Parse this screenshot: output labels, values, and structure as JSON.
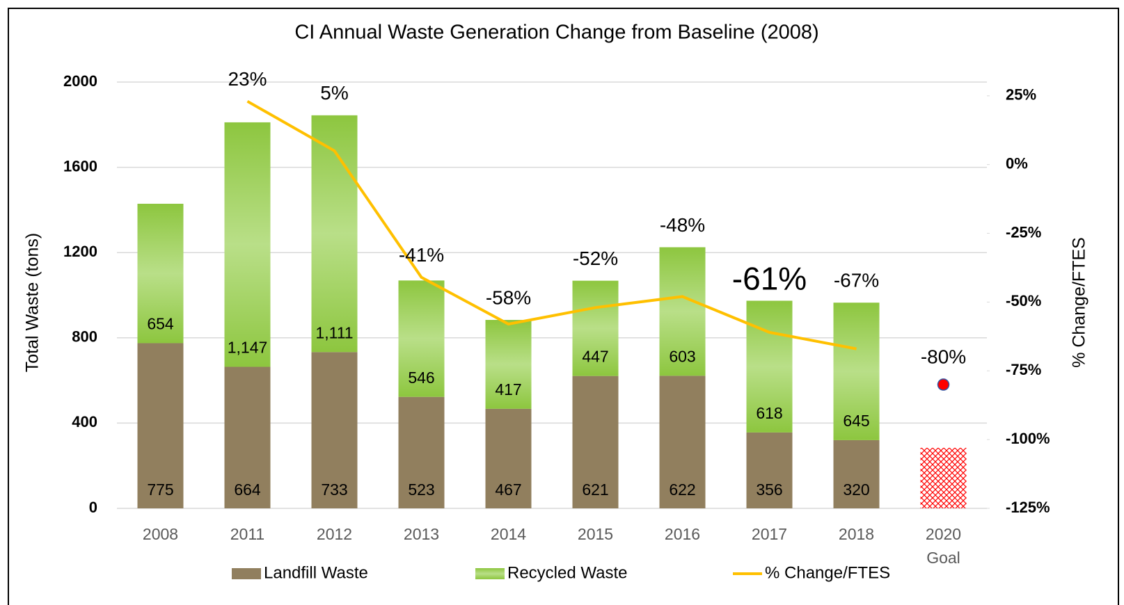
{
  "chart_data": {
    "type": "bar",
    "title": "CI Annual Waste Generation Change from Baseline (2008)",
    "ylabel": "Total Waste (tons)",
    "y2label": "% Change/FTES",
    "categories": [
      "2008",
      "2011",
      "2012",
      "2013",
      "2014",
      "2015",
      "2016",
      "2017",
      "2018",
      "2020 Goal"
    ],
    "stacked": true,
    "series": [
      {
        "name": "Landfill Waste",
        "color": "#917f5e",
        "values": [
          775,
          664,
          733,
          523,
          467,
          621,
          622,
          356,
          320,
          null
        ]
      },
      {
        "name": "Recycled Waste",
        "color": "#8dc63f",
        "values": [
          654,
          1147,
          1111,
          546,
          417,
          447,
          603,
          618,
          645,
          null
        ],
        "value_labels": [
          "654",
          "1,147",
          "1,111",
          "546",
          "417",
          "447",
          "603",
          "618",
          "645",
          null
        ]
      },
      {
        "name": "% Change/FTES",
        "type": "line",
        "axis": "y2",
        "color": "#ffc000",
        "values": [
          null,
          23,
          5,
          -41,
          -58,
          -52,
          -48,
          -61,
          -67,
          null
        ],
        "value_labels": [
          null,
          "23%",
          "5%",
          "-41%",
          "-58%",
          "-52%",
          "-48%",
          "-61%",
          "-67%",
          null
        ]
      }
    ],
    "goal": {
      "bar": 284,
      "bar_color": "#ff0000",
      "point": -80,
      "point_label": "-80%",
      "point_color": "#ff0000"
    },
    "ylim": [
      0,
      2000
    ],
    "yticks": [
      0,
      400,
      800,
      1200,
      1600,
      2000
    ],
    "y2lim": [
      -125,
      30
    ],
    "y2ticks": [
      {
        "value": -125,
        "label": "-125%"
      },
      {
        "value": -100,
        "label": "-100%"
      },
      {
        "value": -75,
        "label": "-75%"
      },
      {
        "value": -50,
        "label": "-50%"
      },
      {
        "value": -25,
        "label": "-25%"
      },
      {
        "value": 0,
        "label": "0%"
      },
      {
        "value": 25,
        "label": "25%"
      }
    ],
    "grid": true,
    "legend": "bottom"
  }
}
